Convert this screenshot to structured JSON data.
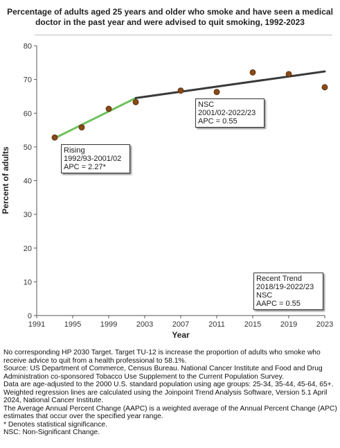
{
  "chart_data": {
    "type": "line",
    "title": "Percentage of adults aged 25 years and older who smoke and have seen a medical doctor in the past year and were advised to quit smoking, 1992-2023",
    "xlabel": "Year",
    "ylabel": "Percent of adults",
    "xlim": [
      1991,
      2023
    ],
    "ylim": [
      0,
      80
    ],
    "x_ticks": [
      1991,
      1995,
      1999,
      2003,
      2007,
      2011,
      2015,
      2019,
      2023
    ],
    "y_ticks": [
      0,
      10,
      20,
      30,
      40,
      50,
      60,
      70,
      80
    ],
    "grid": false,
    "points": [
      {
        "x": 1993,
        "y": 52.8
      },
      {
        "x": 1996,
        "y": 55.8
      },
      {
        "x": 1999,
        "y": 61.3
      },
      {
        "x": 2002,
        "y": 63.3
      },
      {
        "x": 2007,
        "y": 66.7
      },
      {
        "x": 2011,
        "y": 66.3
      },
      {
        "x": 2015,
        "y": 72.1
      },
      {
        "x": 2019,
        "y": 71.6
      },
      {
        "x": 2023,
        "y": 67.7
      }
    ],
    "trend_segments": [
      {
        "x": [
          1993,
          2002
        ],
        "y": [
          52.6,
          64.5
        ],
        "color": "#6ec15a"
      },
      {
        "x": [
          2002,
          2023
        ],
        "y": [
          64.5,
          72.4
        ],
        "color": "#3a3a3a"
      }
    ],
    "marker_color": "#8b4a16",
    "annotations": [
      {
        "id": "rising",
        "lines": [
          "Rising",
          "1992/93-2001/02",
          "APC =  2.27*"
        ]
      },
      {
        "id": "nsc",
        "lines": [
          "NSC",
          "2001/02-2022/23",
          "APC =  0.55"
        ]
      },
      {
        "id": "recent",
        "lines": [
          "Recent Trend",
          "2018/19-2022/23",
          "NSC",
          "AAPC =  0.55"
        ]
      }
    ]
  },
  "footnotes": [
    "No corresponding HP 2030 Target. Target TU-12 is increase the proportion of adults who smoke who receive advice to quit from a health professional to 58.1%.",
    "Source: US Department of Commerce, Census Bureau. National Cancer Institute and Food and Drug Administration co-sponsored Tobacco Use Supplement to the Current Population Survey.",
    "Data are age-adjusted to the 2000 U.S. standard population using age groups: 25-34, 35-44, 45-64, 65+.",
    "Weighted regression lines are calculated using the Joinpoint Trend Analysis Software, Version 5.1 April 2024, National Cancer Institute.",
    "The Average Annual Percent Change (AAPC) is a weighted average of the Annual Percent Change (APC) estimates that occur over the specified year range.",
    "* Denotes statistical significance.",
    "NSC: Non-Significant Change."
  ]
}
